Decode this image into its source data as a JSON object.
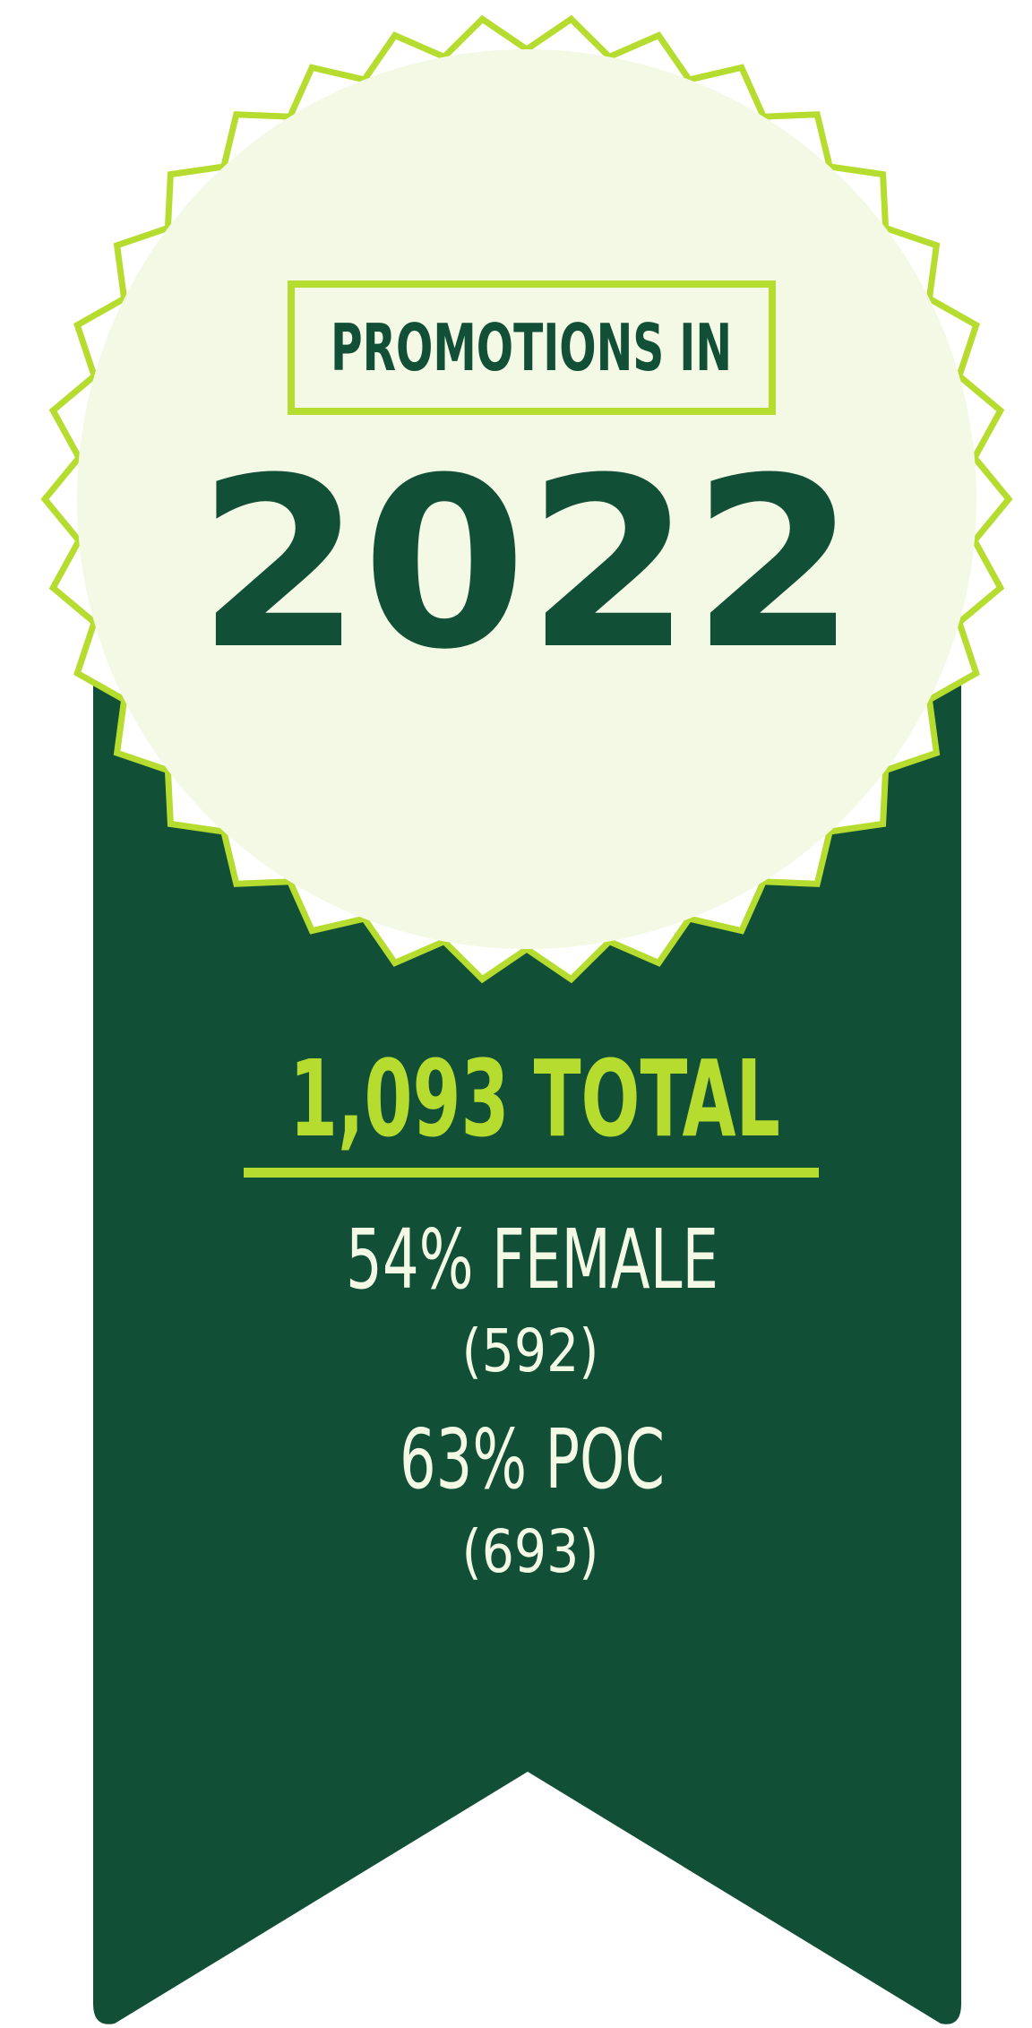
{
  "header": {
    "title": "PROMOTIONS IN",
    "year": "2022"
  },
  "total": "1,093 TOTAL",
  "stats": [
    {
      "percent": "54% FEMALE",
      "count": "(592)"
    },
    {
      "percent": "63% POC",
      "count": "(693)"
    }
  ]
}
